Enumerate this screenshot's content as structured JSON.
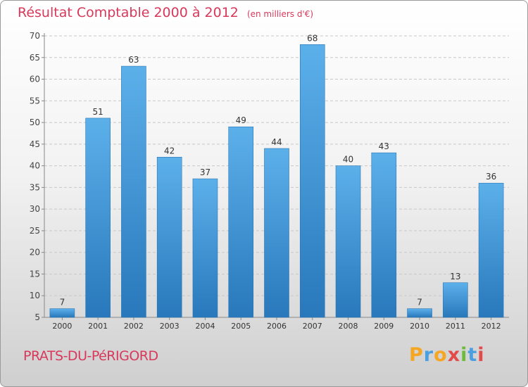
{
  "header": {
    "title": "Résultat Comptable 2000 à 2012",
    "subtitle": "(en milliers d'€)"
  },
  "footer": {
    "city": "PRATS-DU-PéRIGORD",
    "brand": "Proxiti"
  },
  "colors": {
    "bar_light": "#5aaee8",
    "bar_dark": "#2a7bbf",
    "title": "#d8385a"
  },
  "chart_data": {
    "type": "bar",
    "title": "Résultat Comptable 2000 à 2012",
    "subtitle": "(en milliers d'€)",
    "xlabel": "",
    "ylabel": "",
    "categories": [
      "2000",
      "2001",
      "2002",
      "2003",
      "2004",
      "2005",
      "2006",
      "2007",
      "2008",
      "2009",
      "2010",
      "2011",
      "2012"
    ],
    "values": [
      7,
      51,
      63,
      42,
      37,
      49,
      44,
      68,
      40,
      43,
      7,
      13,
      36
    ],
    "ylim": [
      5,
      70
    ],
    "yticks": [
      5,
      10,
      15,
      20,
      25,
      30,
      35,
      40,
      45,
      50,
      55,
      60,
      65,
      70
    ],
    "grid": "horizontal-dashed"
  }
}
